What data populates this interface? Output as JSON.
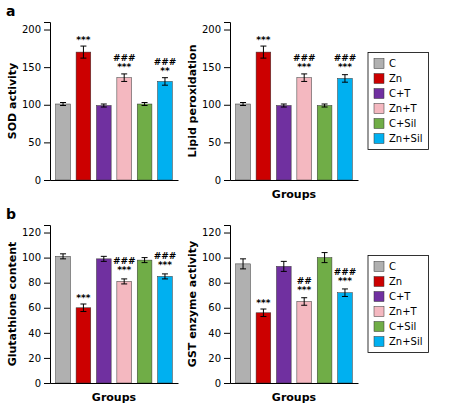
{
  "chart_data": [
    {
      "type": "bar",
      "title": "a",
      "categories": [
        "C",
        "Zn",
        "C+T",
        "Zn+T",
        "C+Sil",
        "Zn+Sil"
      ],
      "values": [
        101,
        170,
        99,
        136,
        101,
        131
      ],
      "errors": [
        2,
        8,
        2,
        5,
        2,
        5
      ],
      "colors": [
        "#b0b0b0",
        "#cc0000",
        "#7030a0",
        "#f4b8c0",
        "#70ad47",
        "#00b0f0"
      ],
      "ylabel": "SOD activity",
      "ylim": [
        0,
        210
      ],
      "yticks": [
        0,
        50,
        100,
        150,
        200
      ],
      "annotations": [
        {
          "category": "Zn",
          "text": "***",
          "y": 180
        },
        {
          "category": "Zn+T",
          "text": "###\n***",
          "y": 143
        },
        {
          "category": "Zn+Sil",
          "text": "###\n**",
          "y": 138
        }
      ],
      "tick_labels": "y",
      "grid": false,
      "legend": "right"
    },
    {
      "type": "bar",
      "categories": [
        "C",
        "Zn",
        "C+T",
        "Zn+T",
        "C+Sil",
        "Zn+Sil"
      ],
      "values": [
        101,
        170,
        99,
        136,
        99,
        135
      ],
      "errors": [
        2,
        8,
        2,
        5,
        2,
        5
      ],
      "colors": [
        "#b0b0b0",
        "#cc0000",
        "#7030a0",
        "#f4b8c0",
        "#70ad47",
        "#00b0f0"
      ],
      "ylabel": "Lipid peroxidation",
      "xlabel": "Groups",
      "ylim": [
        0,
        210
      ],
      "yticks": [
        0,
        50,
        100,
        150,
        200
      ],
      "annotations": [
        {
          "category": "Zn",
          "text": "***",
          "y": 180
        },
        {
          "category": "Zn+T",
          "text": "###\n***",
          "y": 143
        },
        {
          "category": "Zn+Sil",
          "text": "###\n***",
          "y": 143
        }
      ],
      "tick_labels": "y",
      "grid": false
    },
    {
      "type": "bar",
      "title": "b",
      "categories": [
        "C",
        "Zn",
        "C+T",
        "Zn+T",
        "C+Sil",
        "Zn+Sil"
      ],
      "values": [
        101,
        60,
        99,
        81,
        98,
        85
      ],
      "errors": [
        2,
        3,
        2,
        2,
        2,
        2
      ],
      "colors": [
        "#b0b0b0",
        "#cc0000",
        "#7030a0",
        "#f4b8c0",
        "#70ad47",
        "#00b0f0"
      ],
      "ylabel": "Glutathione content",
      "xlabel": "Groups",
      "ylim": [
        0,
        126
      ],
      "yticks": [
        0,
        20,
        40,
        60,
        80,
        100,
        120
      ],
      "annotations": [
        {
          "category": "Zn",
          "text": "***",
          "y": 64
        },
        {
          "category": "Zn+T",
          "text": "###\n***",
          "y": 86
        },
        {
          "category": "Zn+Sil",
          "text": "###\n***",
          "y": 90
        }
      ],
      "tick_labels": "y",
      "grid": false,
      "legend": "right"
    },
    {
      "type": "bar",
      "categories": [
        "C",
        "Zn",
        "C+T",
        "Zn+T",
        "C+Sil",
        "Zn+Sil"
      ],
      "values": [
        95,
        56,
        93,
        65,
        100,
        72
      ],
      "errors": [
        4,
        3,
        4,
        3,
        4,
        3
      ],
      "colors": [
        "#b0b0b0",
        "#cc0000",
        "#7030a0",
        "#f4b8c0",
        "#70ad47",
        "#00b0f0"
      ],
      "ylabel": "GST enzyme activity",
      "xlabel": "Groups",
      "ylim": [
        0,
        126
      ],
      "yticks": [
        0,
        20,
        40,
        60,
        80,
        100,
        120
      ],
      "annotations": [
        {
          "category": "Zn",
          "text": "***",
          "y": 60
        },
        {
          "category": "Zn+T",
          "text": "##\n***",
          "y": 70
        },
        {
          "category": "Zn+Sil",
          "text": "###\n***",
          "y": 77
        }
      ],
      "tick_labels": "y",
      "grid": false
    }
  ]
}
